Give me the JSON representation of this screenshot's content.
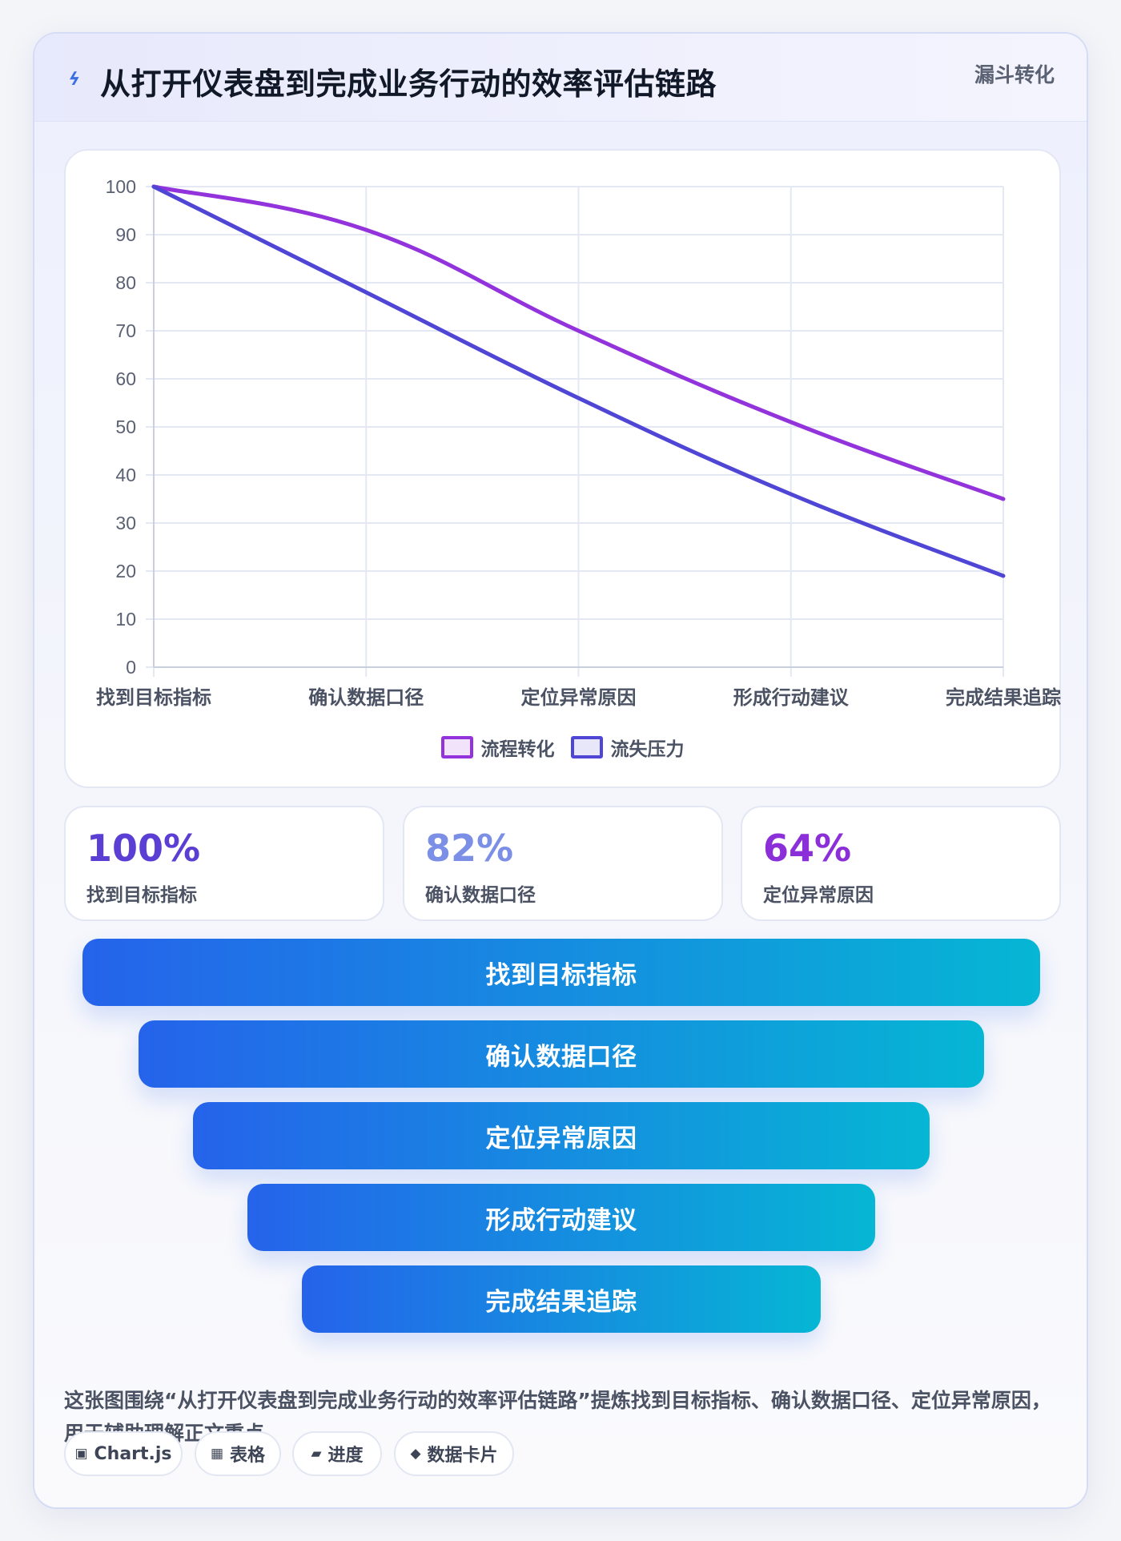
{
  "header": {
    "icon": "lightning-icon",
    "title": "从打开仪表盘到完成业务行动的效率评估链路",
    "tag": "漏斗转化"
  },
  "chart_data": {
    "type": "line",
    "categories": [
      "找到目标指标",
      "确认数据口径",
      "定位异常原因",
      "形成行动建议",
      "完成结果追踪"
    ],
    "series": [
      {
        "name": "流程转化",
        "values": [
          100,
          91,
          70,
          51,
          35
        ],
        "color": "#9333db"
      },
      {
        "name": "流失压力",
        "values": [
          100,
          78,
          56,
          36,
          19
        ],
        "color": "#4f46d5"
      }
    ],
    "ylim": [
      0,
      100
    ],
    "yticks": [
      0,
      10,
      20,
      30,
      40,
      50,
      60,
      70,
      80,
      90,
      100
    ],
    "grid": true,
    "legend_position": "bottom"
  },
  "stats": [
    {
      "value": "100%",
      "label": "找到目标指标",
      "color": "#5b3fd4"
    },
    {
      "value": "82%",
      "label": "确认数据口径",
      "color": "#7c8fe6"
    },
    {
      "value": "64%",
      "label": "定位异常原因",
      "color": "#8b2fd8"
    }
  ],
  "funnel": {
    "steps": [
      "找到目标指标",
      "确认数据口径",
      "定位异常原因",
      "形成行动建议",
      "完成结果追踪"
    ],
    "gradient_start": "#2563eb",
    "gradient_end": "#06b6d4"
  },
  "description": "这张图围绕“从打开仪表盘到完成业务行动的效率评估链路”提炼找到目标指标、确认数据口径、定位异常原因，用于辅助理解正文重点。",
  "chips": [
    {
      "icon": "chart-box-icon",
      "glyph": "▣",
      "label": "Chart.js"
    },
    {
      "icon": "table-icon",
      "glyph": "▦",
      "label": "表格"
    },
    {
      "icon": "progress-icon",
      "glyph": "▰",
      "label": "进度"
    },
    {
      "icon": "diamond-icon",
      "glyph": "◆",
      "label": "数据卡片"
    }
  ]
}
